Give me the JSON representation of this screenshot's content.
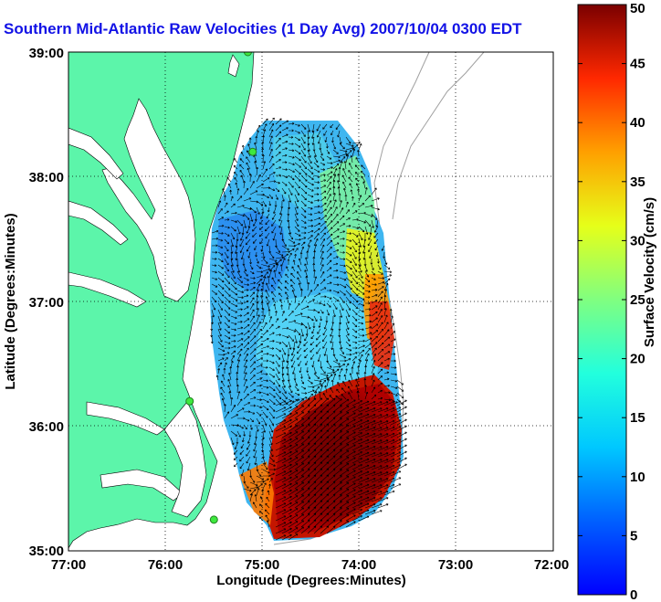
{
  "title": "Southern Mid-Atlantic Raw Velocities (1 Day Avg) 2007/10/04 0300 EDT",
  "chart_data": {
    "type": "heatmap",
    "title": "Southern Mid-Atlantic Raw Velocities (1 Day Avg) 2007/10/04 0300 EDT",
    "xlabel": "Longitude (Degrees:Minutes)",
    "ylabel": "Latitude (Degrees:Minutes)",
    "x_ticks": [
      "77:00",
      "76:00",
      "75:00",
      "74:00",
      "73:00",
      "72:00"
    ],
    "y_ticks": [
      "39:00",
      "38:00",
      "37:00",
      "36:00",
      "35:00"
    ],
    "xlim": [
      -77,
      -72
    ],
    "ylim": [
      35,
      39
    ],
    "grid": true,
    "colorbar": {
      "label": "Surface Velocity (cm/s)",
      "ticks": [
        "0",
        "5",
        "10",
        "15",
        "20",
        "25",
        "30",
        "35",
        "40",
        "45",
        "50"
      ],
      "range": [
        0,
        50
      ],
      "colormap": "jet"
    },
    "regions": [
      {
        "lon": -74.45,
        "lat": 35.6,
        "speed": 48
      },
      {
        "lon": -74.1,
        "lat": 36.0,
        "speed": 50
      },
      {
        "lon": -73.9,
        "lat": 36.8,
        "speed": 40
      },
      {
        "lon": -74.0,
        "lat": 37.4,
        "speed": 28
      },
      {
        "lon": -74.3,
        "lat": 38.3,
        "speed": 20
      },
      {
        "lon": -75.1,
        "lat": 37.3,
        "speed": 9
      },
      {
        "lon": -75.0,
        "lat": 36.5,
        "speed": 10
      },
      {
        "lon": -74.7,
        "lat": 36.9,
        "speed": 12
      }
    ],
    "stations": [
      {
        "lon": -75.15,
        "lat": 39.0
      },
      {
        "lon": -75.1,
        "lat": 38.2
      },
      {
        "lon": -75.75,
        "lat": 36.2
      },
      {
        "lon": -75.5,
        "lat": 35.25
      }
    ]
  }
}
